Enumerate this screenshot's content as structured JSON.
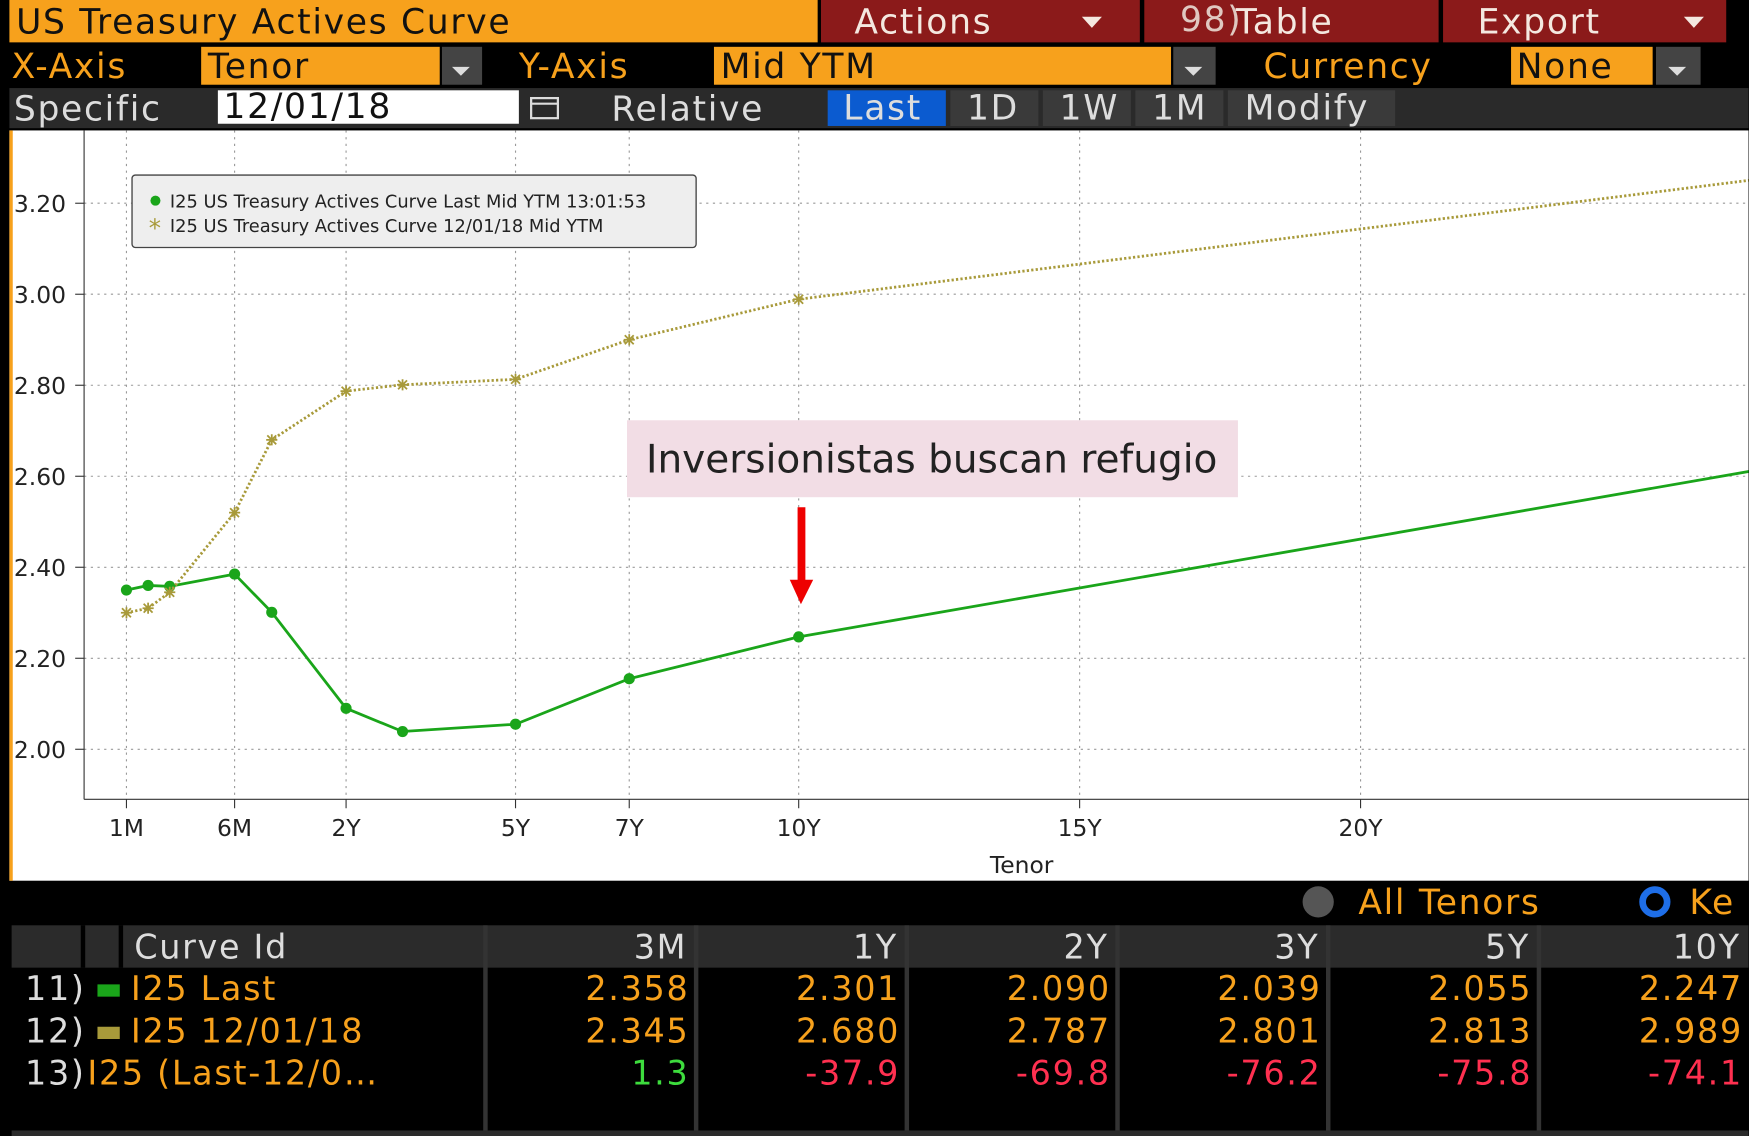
{
  "toolbar": {
    "title": "US Treasury Actives Curve",
    "actions": "Actions",
    "table_num": "98)",
    "table": "Table",
    "export": "Export",
    "x_axis_label": "X-Axis",
    "x_axis_value": "Tenor",
    "y_axis_label": "Y-Axis",
    "y_axis_value": "Mid YTM",
    "currency_label": "Currency",
    "currency_value": "None",
    "specific_label": "Specific",
    "specific_date": "12/01/18",
    "relative_label": "Relative",
    "relative_buttons": [
      "Last",
      "1D",
      "1W",
      "1M",
      "Modify"
    ]
  },
  "chart_data": {
    "type": "line",
    "x_label": "Tenor",
    "annotation": "Inversionistas buscan refugio",
    "xlim": [
      0,
      27
    ],
    "xticks": [
      {
        "value": 0.0833,
        "label": "1M"
      },
      {
        "value": 0.5,
        "label": "6M"
      },
      {
        "value": 2,
        "label": "2Y"
      },
      {
        "value": 5,
        "label": "5Y"
      },
      {
        "value": 7,
        "label": "7Y"
      },
      {
        "value": 10,
        "label": "10Y"
      },
      {
        "value": 15,
        "label": "15Y"
      },
      {
        "value": 20,
        "label": "20Y"
      }
    ],
    "ylim": [
      1.89,
      3.36
    ],
    "yticks": [
      {
        "value": 2.0,
        "label": "2.00"
      },
      {
        "value": 2.2,
        "label": "2.20"
      },
      {
        "value": 2.4,
        "label": "2.40"
      },
      {
        "value": 2.6,
        "label": "2.60"
      },
      {
        "value": 2.8,
        "label": "2.80"
      },
      {
        "value": 3.0,
        "label": "3.00"
      },
      {
        "value": 3.2,
        "label": "3.20"
      }
    ],
    "grid": true,
    "legend": "upper left",
    "x": [
      0.0833,
      0.1667,
      0.25,
      0.5,
      1,
      2,
      3,
      5,
      7,
      10,
      30
    ],
    "series": [
      {
        "name": "I25 US Treasury Actives Curve Last Mid YTM 13:01:53",
        "color": "#1aa51a",
        "marker": "circle",
        "values": [
          2.35,
          2.36,
          2.358,
          2.385,
          2.301,
          2.09,
          2.039,
          2.055,
          2.155,
          2.247,
          2.677
        ]
      },
      {
        "name": "I25 US Treasury Actives Curve 12/01/18 Mid YTM",
        "color": "#a89a3a",
        "marker": "star",
        "values": [
          2.3,
          2.31,
          2.345,
          2.52,
          2.68,
          2.787,
          2.801,
          2.813,
          2.9,
          2.989,
          3.298
        ]
      }
    ]
  },
  "legend_bar": {
    "all_tenors": "All Tenors",
    "key": "Ke"
  },
  "table": {
    "header": [
      "Curve Id",
      "3M",
      "1Y",
      "2Y",
      "3Y",
      "5Y",
      "10Y"
    ],
    "rows": [
      {
        "num": "11)",
        "label": "I25 Last",
        "cells": [
          "2.358",
          "2.301",
          "2.090",
          "2.039",
          "2.055",
          "2.247"
        ]
      },
      {
        "num": "12)",
        "label": "I25 12/01/18",
        "cells": [
          "2.345",
          "2.680",
          "2.787",
          "2.801",
          "2.813",
          "2.989"
        ]
      },
      {
        "num": "13)",
        "label": "I25 (Last-12/0…",
        "cells": [
          "1.3",
          "-37.9",
          "-69.8",
          "-76.2",
          "-75.8",
          "-74.1"
        ]
      }
    ]
  }
}
